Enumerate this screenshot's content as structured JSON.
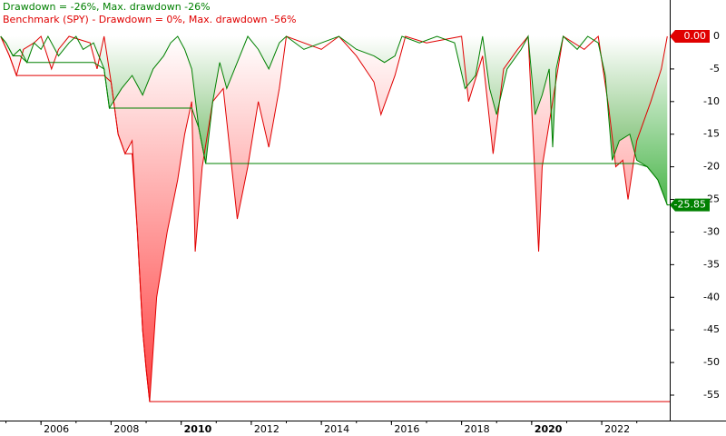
{
  "chart_data": {
    "type": "line",
    "xlim": [
      2004.83,
      2023.94
    ],
    "xticks": [
      2006,
      2008,
      2010,
      2012,
      2014,
      2016,
      2018,
      2020,
      2022
    ],
    "ylim": [
      -58.9,
      5.57
    ],
    "yticks": [
      0,
      -5,
      -10,
      -15,
      -20,
      -25,
      -30,
      -35,
      -40,
      -45,
      -50,
      -55
    ],
    "series": [
      {
        "name": "Drawdown = -26%, Max. drawdown -26%",
        "color": "#008000",
        "last_value_label": "-25.85",
        "x": [
          2004.85,
          2005.0,
          2005.2,
          2005.4,
          2005.6,
          2005.8,
          2006.0,
          2006.2,
          2006.5,
          2006.8,
          2007.0,
          2007.2,
          2007.5,
          2007.8,
          2007.95,
          2008.3,
          2008.6,
          2008.9,
          2009.2,
          2009.5,
          2009.7,
          2009.9,
          2010.1,
          2010.3,
          2010.5,
          2010.7,
          2010.9,
          2011.1,
          2011.3,
          2011.6,
          2011.9,
          2012.2,
          2012.5,
          2012.8,
          2013.0,
          2013.5,
          2014.0,
          2014.5,
          2015.0,
          2015.5,
          2015.8,
          2016.1,
          2016.3,
          2016.8,
          2017.3,
          2017.8,
          2018.1,
          2018.4,
          2018.6,
          2018.8,
          2019.0,
          2019.3,
          2019.7,
          2019.9,
          2020.1,
          2020.3,
          2020.5,
          2020.6,
          2020.7,
          2020.9,
          2021.3,
          2021.6,
          2021.9,
          2022.1,
          2022.3,
          2022.5,
          2022.8,
          2023.0,
          2023.3,
          2023.6,
          2023.87
        ],
        "values": [
          0,
          -1,
          -3,
          -2,
          -4,
          -1,
          -2,
          0,
          -3,
          -1,
          0,
          -2,
          -1,
          -5,
          -11,
          -8,
          -6,
          -9,
          -5,
          -3,
          -1,
          0,
          -2,
          -5,
          -14,
          -19.5,
          -10,
          -4,
          -8,
          -4,
          0,
          -2,
          -5,
          -1,
          0,
          -2,
          -1,
          0,
          -2,
          -3,
          -4,
          -3,
          0,
          -1,
          0,
          -1,
          -8,
          -6,
          0,
          -8,
          -12,
          -5,
          -2,
          0,
          -12,
          -9,
          -5,
          -17,
          -5,
          0,
          -2,
          0,
          -1,
          -6,
          -19,
          -16,
          -15,
          -19,
          -20,
          -22,
          -25.85
        ]
      },
      {
        "name": "Benchmark (SPY) - Drawdown = 0%, Max. drawdown -56%",
        "color": "#e00000",
        "last_value_label": "0.00",
        "x": [
          2004.85,
          2005.1,
          2005.3,
          2005.5,
          2005.8,
          2006.0,
          2006.3,
          2006.5,
          2006.8,
          2007.4,
          2007.6,
          2007.8,
          2008.0,
          2008.2,
          2008.4,
          2008.6,
          2008.75,
          2008.9,
          2009.0,
          2009.1,
          2009.3,
          2009.6,
          2009.9,
          2010.1,
          2010.3,
          2010.4,
          2010.6,
          2010.9,
          2011.2,
          2011.4,
          2011.6,
          2011.9,
          2012.2,
          2012.5,
          2012.8,
          2013.0,
          2014.0,
          2014.5,
          2015.0,
          2015.5,
          2015.7,
          2016.1,
          2016.4,
          2017.0,
          2018.0,
          2018.2,
          2018.6,
          2018.9,
          2019.2,
          2019.6,
          2019.9,
          2020.2,
          2020.3,
          2020.6,
          2020.9,
          2021.5,
          2021.9,
          2022.2,
          2022.4,
          2022.6,
          2022.75,
          2023.0,
          2023.4,
          2023.7,
          2023.87
        ],
        "values": [
          0,
          -3,
          -6,
          -2,
          -1,
          0,
          -5,
          -2,
          0,
          -1,
          -5,
          0,
          -7,
          -15,
          -18,
          -16,
          -30,
          -45,
          -51,
          -56,
          -40,
          -30,
          -22,
          -15,
          -10,
          -33,
          -20,
          -10,
          -8,
          -18,
          -28,
          -20,
          -10,
          -17,
          -8,
          0,
          -2,
          0,
          -3,
          -7,
          -12,
          -6,
          0,
          -1,
          0,
          -10,
          -3,
          -18,
          -5,
          -2,
          0,
          -33,
          -20,
          -10,
          0,
          -2,
          0,
          -11,
          -20,
          -19,
          -25,
          -16,
          -10,
          -5,
          0
        ]
      }
    ]
  }
}
